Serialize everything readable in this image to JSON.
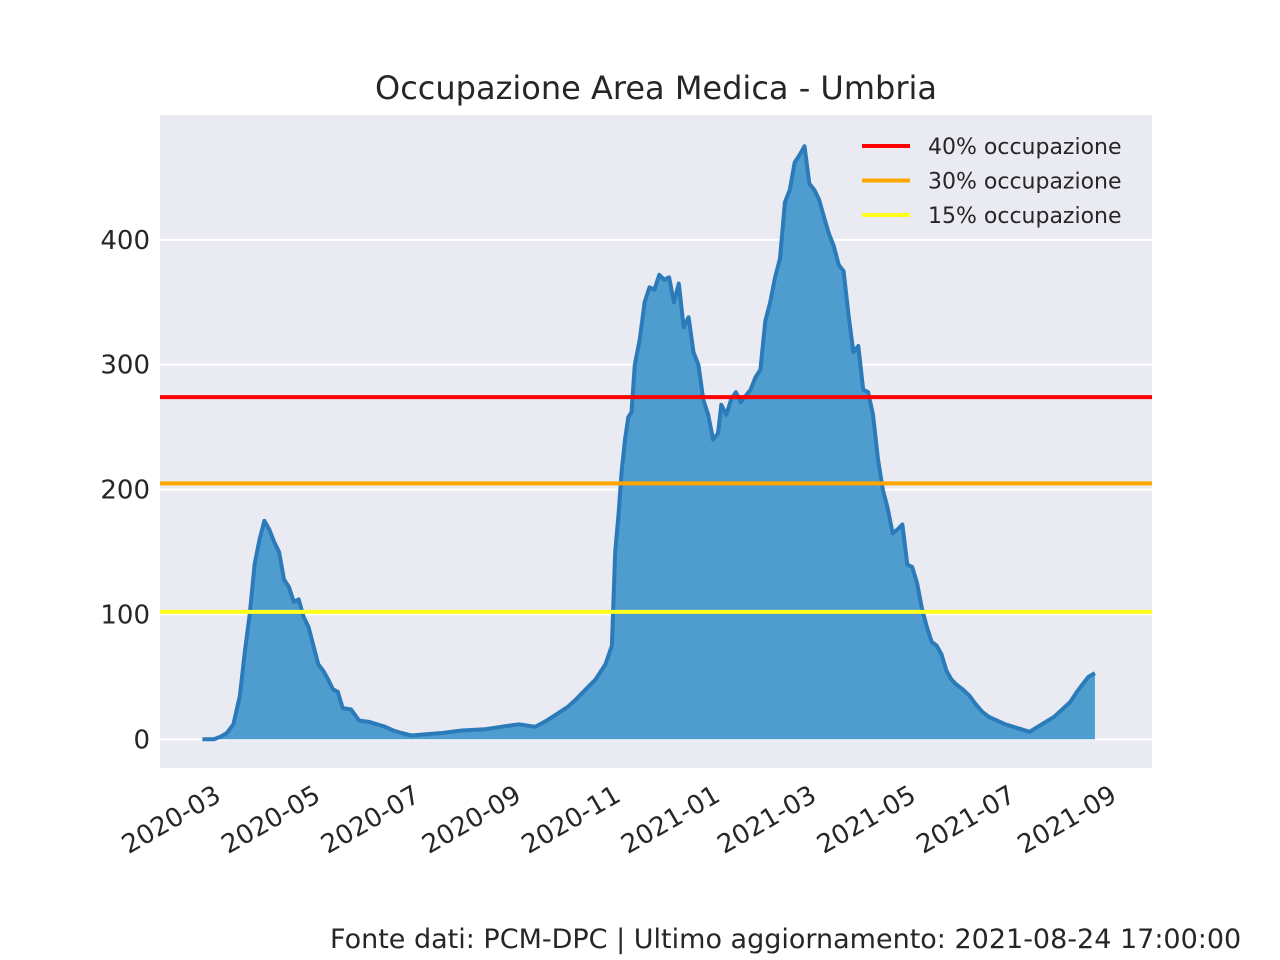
{
  "chart_data": {
    "type": "area",
    "title": "Occupazione Area Medica - Umbria",
    "xlabel": "",
    "ylabel": "",
    "grid": true,
    "legend_position": "top-right",
    "x_range": [
      "2020-01-29",
      "2021-09-28"
    ],
    "ylim": [
      -23,
      500
    ],
    "y_ticks": [
      0,
      100,
      200,
      300,
      400
    ],
    "x_ticks": [
      "2020-03",
      "2020-05",
      "2020-07",
      "2020-09",
      "2020-11",
      "2021-01",
      "2021-03",
      "2021-05",
      "2021-07",
      "2021-09"
    ],
    "series": [
      {
        "color": "#2b7bba",
        "fill_color": "#4f9dce",
        "points": [
          [
            "2020-02-24",
            0
          ],
          [
            "2020-03-02",
            0
          ],
          [
            "2020-03-06",
            2
          ],
          [
            "2020-03-10",
            5
          ],
          [
            "2020-03-14",
            12
          ],
          [
            "2020-03-18",
            35
          ],
          [
            "2020-03-21",
            70
          ],
          [
            "2020-03-24",
            100
          ],
          [
            "2020-03-27",
            140
          ],
          [
            "2020-03-30",
            160
          ],
          [
            "2020-04-02",
            175
          ],
          [
            "2020-04-05",
            168
          ],
          [
            "2020-04-08",
            158
          ],
          [
            "2020-04-11",
            150
          ],
          [
            "2020-04-14",
            128
          ],
          [
            "2020-04-17",
            122
          ],
          [
            "2020-04-20",
            110
          ],
          [
            "2020-04-23",
            112
          ],
          [
            "2020-04-26",
            98
          ],
          [
            "2020-04-29",
            90
          ],
          [
            "2020-05-02",
            75
          ],
          [
            "2020-05-05",
            60
          ],
          [
            "2020-05-08",
            55
          ],
          [
            "2020-05-11",
            48
          ],
          [
            "2020-05-14",
            40
          ],
          [
            "2020-05-17",
            38
          ],
          [
            "2020-05-20",
            25
          ],
          [
            "2020-05-25",
            24
          ],
          [
            "2020-05-30",
            15
          ],
          [
            "2020-06-05",
            14
          ],
          [
            "2020-06-10",
            12
          ],
          [
            "2020-06-15",
            10
          ],
          [
            "2020-06-20",
            7
          ],
          [
            "2020-06-25",
            5
          ],
          [
            "2020-07-01",
            3
          ],
          [
            "2020-07-10",
            4
          ],
          [
            "2020-07-20",
            5
          ],
          [
            "2020-08-01",
            7
          ],
          [
            "2020-08-15",
            8
          ],
          [
            "2020-08-25",
            10
          ],
          [
            "2020-09-05",
            12
          ],
          [
            "2020-09-15",
            10
          ],
          [
            "2020-09-22",
            15
          ],
          [
            "2020-09-28",
            20
          ],
          [
            "2020-10-05",
            26
          ],
          [
            "2020-10-10",
            32
          ],
          [
            "2020-10-16",
            40
          ],
          [
            "2020-10-22",
            48
          ],
          [
            "2020-10-28",
            60
          ],
          [
            "2020-11-01",
            75
          ],
          [
            "2020-11-03",
            150
          ],
          [
            "2020-11-05",
            180
          ],
          [
            "2020-11-07",
            215
          ],
          [
            "2020-11-09",
            240
          ],
          [
            "2020-11-11",
            258
          ],
          [
            "2020-11-13",
            262
          ],
          [
            "2020-11-15",
            300
          ],
          [
            "2020-11-18",
            320
          ],
          [
            "2020-11-21",
            350
          ],
          [
            "2020-11-24",
            362
          ],
          [
            "2020-11-27",
            360
          ],
          [
            "2020-11-30",
            372
          ],
          [
            "2020-12-03",
            368
          ],
          [
            "2020-12-06",
            370
          ],
          [
            "2020-12-09",
            350
          ],
          [
            "2020-12-12",
            365
          ],
          [
            "2020-12-15",
            330
          ],
          [
            "2020-12-18",
            338
          ],
          [
            "2020-12-21",
            310
          ],
          [
            "2020-12-24",
            300
          ],
          [
            "2020-12-27",
            272
          ],
          [
            "2020-12-30",
            260
          ],
          [
            "2021-01-02",
            240
          ],
          [
            "2021-01-05",
            245
          ],
          [
            "2021-01-07",
            268
          ],
          [
            "2021-01-10",
            260
          ],
          [
            "2021-01-13",
            272
          ],
          [
            "2021-01-16",
            278
          ],
          [
            "2021-01-19",
            270
          ],
          [
            "2021-01-22",
            275
          ],
          [
            "2021-01-25",
            280
          ],
          [
            "2021-01-28",
            290
          ],
          [
            "2021-01-31",
            296
          ],
          [
            "2021-02-03",
            335
          ],
          [
            "2021-02-06",
            350
          ],
          [
            "2021-02-09",
            370
          ],
          [
            "2021-02-12",
            385
          ],
          [
            "2021-02-15",
            430
          ],
          [
            "2021-02-18",
            440
          ],
          [
            "2021-02-21",
            462
          ],
          [
            "2021-02-24",
            468
          ],
          [
            "2021-02-27",
            475
          ],
          [
            "2021-03-02",
            445
          ],
          [
            "2021-03-05",
            440
          ],
          [
            "2021-03-08",
            432
          ],
          [
            "2021-03-11",
            418
          ],
          [
            "2021-03-14",
            405
          ],
          [
            "2021-03-17",
            395
          ],
          [
            "2021-03-20",
            380
          ],
          [
            "2021-03-23",
            375
          ],
          [
            "2021-03-26",
            340
          ],
          [
            "2021-03-29",
            310
          ],
          [
            "2021-04-01",
            315
          ],
          [
            "2021-04-04",
            280
          ],
          [
            "2021-04-07",
            278
          ],
          [
            "2021-04-10",
            260
          ],
          [
            "2021-04-13",
            225
          ],
          [
            "2021-04-16",
            200
          ],
          [
            "2021-04-19",
            185
          ],
          [
            "2021-04-22",
            165
          ],
          [
            "2021-04-25",
            168
          ],
          [
            "2021-04-28",
            172
          ],
          [
            "2021-05-01",
            140
          ],
          [
            "2021-05-04",
            138
          ],
          [
            "2021-05-07",
            125
          ],
          [
            "2021-05-10",
            105
          ],
          [
            "2021-05-13",
            90
          ],
          [
            "2021-05-16",
            78
          ],
          [
            "2021-05-19",
            75
          ],
          [
            "2021-05-22",
            68
          ],
          [
            "2021-05-25",
            55
          ],
          [
            "2021-05-28",
            48
          ],
          [
            "2021-05-31",
            44
          ],
          [
            "2021-06-04",
            40
          ],
          [
            "2021-06-08",
            35
          ],
          [
            "2021-06-12",
            28
          ],
          [
            "2021-06-16",
            22
          ],
          [
            "2021-06-20",
            18
          ],
          [
            "2021-06-25",
            15
          ],
          [
            "2021-06-30",
            12
          ],
          [
            "2021-07-05",
            10
          ],
          [
            "2021-07-10",
            8
          ],
          [
            "2021-07-15",
            6
          ],
          [
            "2021-07-20",
            10
          ],
          [
            "2021-07-25",
            14
          ],
          [
            "2021-07-30",
            18
          ],
          [
            "2021-08-04",
            24
          ],
          [
            "2021-08-09",
            30
          ],
          [
            "2021-08-13",
            38
          ],
          [
            "2021-08-17",
            45
          ],
          [
            "2021-08-20",
            50
          ],
          [
            "2021-08-24",
            53
          ]
        ]
      }
    ],
    "threshold_lines": [
      {
        "label": "40% occupazione",
        "value": 274,
        "color": "#ff0000"
      },
      {
        "label": "30% occupazione",
        "value": 205,
        "color": "#ffa500"
      },
      {
        "label": "15% occupazione",
        "value": 102,
        "color": "#ffff1a"
      }
    ]
  },
  "footer": {
    "text": "Fonte dati: PCM-DPC | Ultimo aggiornamento: 2021-08-24 17:00:00"
  }
}
